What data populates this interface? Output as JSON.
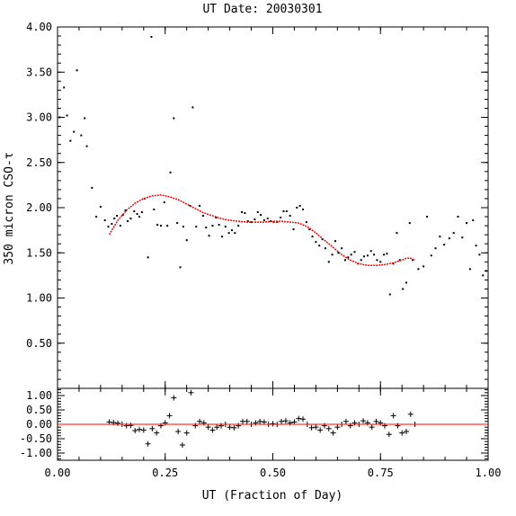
{
  "chart_data": [
    {
      "type": "scatter",
      "title": "UT Date: 20030301",
      "xlabel": "",
      "ylabel": "350 micron CSO-τ",
      "xlim": [
        0.0,
        1.0
      ],
      "ylim": [
        0.0,
        4.0
      ],
      "xticks": [
        0.0,
        0.25,
        0.5,
        0.75,
        1.0
      ],
      "yticks": [
        "0.50",
        "1.00",
        "1.50",
        "2.00",
        "2.50",
        "3.00",
        "3.50",
        "4.00"
      ],
      "grid": false,
      "series": [
        {
          "kind": "points",
          "color": "#000000",
          "x": [
            0.005,
            0.015,
            0.022,
            0.03,
            0.038,
            0.045,
            0.055,
            0.063,
            0.068,
            0.08,
            0.09,
            0.1,
            0.11,
            0.118,
            0.126,
            0.132,
            0.138,
            0.146,
            0.152,
            0.158,
            0.163,
            0.17,
            0.178,
            0.185,
            0.19,
            0.196,
            0.202,
            0.21,
            0.218,
            0.224,
            0.232,
            0.24,
            0.248,
            0.255,
            0.262,
            0.27,
            0.278,
            0.285,
            0.292,
            0.3,
            0.308,
            0.314,
            0.322,
            0.33,
            0.338,
            0.345,
            0.352,
            0.36,
            0.368,
            0.375,
            0.382,
            0.39,
            0.398,
            0.405,
            0.412,
            0.42,
            0.428,
            0.435,
            0.442,
            0.45,
            0.458,
            0.465,
            0.472,
            0.48,
            0.488,
            0.495,
            0.502,
            0.51,
            0.518,
            0.525,
            0.532,
            0.54,
            0.548,
            0.556,
            0.563,
            0.57,
            0.578,
            0.585,
            0.592,
            0.6,
            0.608,
            0.615,
            0.622,
            0.63,
            0.638,
            0.645,
            0.652,
            0.66,
            0.668,
            0.675,
            0.682,
            0.69,
            0.698,
            0.705,
            0.712,
            0.72,
            0.728,
            0.735,
            0.742,
            0.75,
            0.758,
            0.765,
            0.772,
            0.78,
            0.788,
            0.795,
            0.802,
            0.81,
            0.818,
            0.825,
            0.838,
            0.85,
            0.858,
            0.868,
            0.878,
            0.888,
            0.898,
            0.91,
            0.92,
            0.93,
            0.94,
            0.95,
            0.958,
            0.965,
            0.972,
            0.98,
            0.988,
            0.995
          ],
          "y": [
            3.0,
            3.33,
            3.02,
            2.74,
            2.84,
            3.52,
            2.8,
            2.99,
            2.68,
            2.22,
            1.9,
            2.01,
            1.86,
            1.79,
            1.82,
            1.88,
            1.91,
            1.8,
            1.92,
            1.97,
            1.85,
            1.88,
            1.96,
            1.93,
            1.9,
            1.95,
            2.1,
            1.45,
            3.89,
            1.98,
            1.81,
            1.8,
            2.06,
            1.8,
            2.39,
            2.99,
            1.83,
            1.34,
            1.79,
            1.64,
            2.02,
            3.11,
            1.79,
            2.02,
            1.91,
            1.78,
            1.69,
            1.8,
            1.89,
            1.81,
            1.68,
            1.79,
            1.72,
            1.75,
            1.72,
            1.8,
            1.95,
            1.94,
            1.85,
            1.84,
            1.87,
            1.95,
            1.92,
            1.86,
            1.88,
            1.85,
            1.84,
            1.84,
            1.89,
            1.96,
            1.96,
            1.91,
            1.76,
            2.0,
            2.02,
            1.98,
            1.84,
            1.76,
            1.68,
            1.62,
            1.58,
            1.65,
            1.55,
            1.4,
            1.48,
            1.63,
            1.5,
            1.55,
            1.42,
            1.45,
            1.48,
            1.51,
            1.38,
            1.42,
            1.46,
            1.47,
            1.52,
            1.48,
            1.42,
            1.4,
            1.48,
            1.49,
            1.04,
            1.38,
            1.72,
            1.42,
            1.1,
            1.17,
            1.83,
            1.42,
            1.32,
            1.35,
            1.9,
            1.47,
            1.55,
            1.68,
            1.59,
            1.66,
            1.72,
            1.9,
            1.67,
            1.83,
            1.32,
            1.86,
            1.58,
            1.48,
            1.25,
            1.3
          ],
          "symbol": "dot"
        },
        {
          "kind": "fit",
          "color": "#ff0000",
          "x": [
            0.12,
            0.14,
            0.16,
            0.18,
            0.2,
            0.22,
            0.24,
            0.26,
            0.28,
            0.3,
            0.32,
            0.34,
            0.36,
            0.38,
            0.4,
            0.42,
            0.44,
            0.46,
            0.48,
            0.5,
            0.52,
            0.54,
            0.56,
            0.58,
            0.6,
            0.62,
            0.64,
            0.66,
            0.68,
            0.7,
            0.72,
            0.74,
            0.76,
            0.78,
            0.8,
            0.81,
            0.82,
            0.83
          ],
          "y": [
            1.7,
            1.86,
            1.97,
            2.05,
            2.1,
            2.13,
            2.14,
            2.12,
            2.09,
            2.04,
            1.99,
            1.94,
            1.91,
            1.88,
            1.86,
            1.85,
            1.84,
            1.84,
            1.84,
            1.85,
            1.85,
            1.84,
            1.83,
            1.79,
            1.72,
            1.64,
            1.56,
            1.48,
            1.42,
            1.38,
            1.36,
            1.36,
            1.37,
            1.39,
            1.42,
            1.44,
            1.44,
            1.42
          ]
        }
      ]
    },
    {
      "type": "scatter",
      "title": "",
      "xlabel": "UT (Fraction of Day)",
      "ylabel": "",
      "xlim": [
        0.0,
        1.0
      ],
      "ylim": [
        -1.25,
        1.25
      ],
      "xticks": [
        "0.00",
        "0.25",
        "0.50",
        "0.75",
        "1.00"
      ],
      "yticks": [
        "-1.00",
        "-0.50",
        "0.00",
        "0.50",
        "1.00"
      ],
      "grid": false,
      "series": [
        {
          "kind": "residuals",
          "color": "#000000",
          "symbol": "plus",
          "x": [
            0.12,
            0.13,
            0.14,
            0.15,
            0.16,
            0.17,
            0.18,
            0.19,
            0.2,
            0.21,
            0.22,
            0.23,
            0.24,
            0.25,
            0.26,
            0.27,
            0.28,
            0.29,
            0.3,
            0.31,
            0.32,
            0.33,
            0.34,
            0.35,
            0.36,
            0.37,
            0.38,
            0.39,
            0.4,
            0.41,
            0.42,
            0.43,
            0.44,
            0.45,
            0.46,
            0.47,
            0.48,
            0.49,
            0.5,
            0.51,
            0.52,
            0.53,
            0.54,
            0.55,
            0.56,
            0.57,
            0.58,
            0.59,
            0.6,
            0.61,
            0.62,
            0.63,
            0.64,
            0.65,
            0.66,
            0.67,
            0.68,
            0.69,
            0.7,
            0.71,
            0.72,
            0.73,
            0.74,
            0.75,
            0.76,
            0.77,
            0.78,
            0.79,
            0.8,
            0.81,
            0.82,
            0.83
          ],
          "y": [
            0.08,
            0.06,
            0.04,
            0.0,
            -0.05,
            -0.04,
            -0.22,
            -0.18,
            -0.2,
            -0.68,
            -0.15,
            -0.3,
            -0.05,
            0.05,
            0.3,
            0.92,
            -0.25,
            -0.72,
            -0.3,
            1.1,
            -0.05,
            0.1,
            0.05,
            -0.1,
            -0.2,
            -0.1,
            -0.05,
            0.0,
            -0.1,
            -0.12,
            -0.05,
            0.1,
            0.1,
            0.0,
            0.05,
            0.1,
            0.08,
            0.0,
            0.02,
            0.0,
            0.1,
            0.12,
            0.05,
            0.08,
            0.2,
            0.18,
            0.0,
            -0.12,
            -0.1,
            -0.2,
            -0.05,
            -0.15,
            -0.3,
            -0.1,
            0.0,
            0.1,
            -0.05,
            0.05,
            0.0,
            0.12,
            0.05,
            -0.1,
            0.1,
            0.05,
            -0.05,
            -0.35,
            0.3,
            -0.05,
            -0.3,
            -0.25,
            0.35,
            0.0
          ]
        },
        {
          "kind": "zero-line",
          "color": "#ff0000",
          "y": 0.0
        }
      ]
    }
  ]
}
